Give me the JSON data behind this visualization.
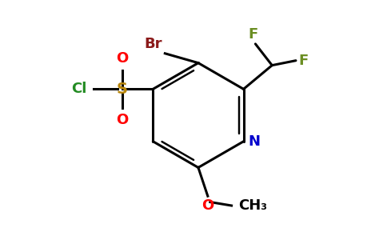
{
  "bg_color": "#ffffff",
  "ring_color": "#000000",
  "line_width": 2.2,
  "atom_colors": {
    "Br": "#8b1a1a",
    "F": "#6b8e23",
    "Cl": "#228b22",
    "S": "#b8860b",
    "O": "#ff0000",
    "N": "#0000cd",
    "C": "#000000"
  },
  "font_size_atoms": 13,
  "font_size_sub": 10
}
